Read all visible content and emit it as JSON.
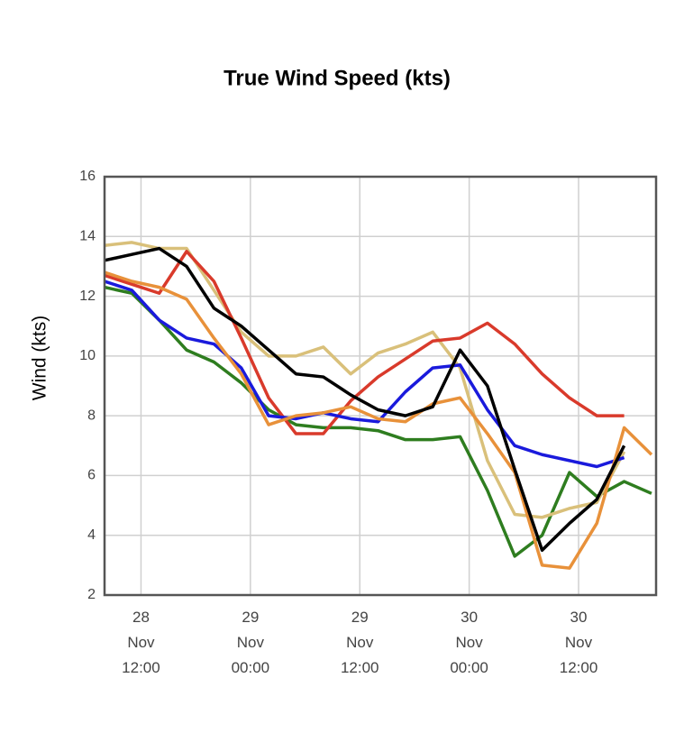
{
  "chart_data": {
    "type": "line",
    "title": "True Wind Speed (kts)",
    "y_label": "Wind (kts)",
    "x": [
      8,
      11,
      14,
      17,
      20,
      23,
      26,
      29,
      32,
      35,
      38,
      41,
      44,
      47,
      50,
      53,
      56,
      59,
      62,
      65,
      68
    ],
    "xlim": [
      8,
      68.5
    ],
    "xticks": [
      {
        "value": 12,
        "label": "28\nNov\n12:00"
      },
      {
        "value": 24,
        "label": "29\nNov\n00:00"
      },
      {
        "value": 36,
        "label": "29\nNov\n12:00"
      },
      {
        "value": 48,
        "label": "30\nNov\n00:00"
      },
      {
        "value": 60,
        "label": "30\nNov\n12:00"
      }
    ],
    "ylim": [
      2,
      16
    ],
    "yticks": [
      2,
      4,
      6,
      8,
      10,
      12,
      14,
      16
    ],
    "grid": true,
    "series": [
      {
        "color": "#2e7d1f",
        "values": [
          12.3,
          12.1,
          11.2,
          10.2,
          9.8,
          9.1,
          8.2,
          7.7,
          7.6,
          7.6,
          7.5,
          7.2,
          7.2,
          7.3,
          5.5,
          3.3,
          4.0,
          6.1,
          5.3,
          5.8,
          5.4
        ]
      },
      {
        "color": "#d9c07a",
        "values": [
          13.7,
          13.8,
          13.6,
          13.6,
          12.2,
          10.8,
          10.0,
          10.0,
          10.3,
          9.4,
          10.1,
          10.4,
          10.8,
          9.6,
          6.5,
          4.7,
          4.6,
          4.9,
          5.1,
          6.8,
          null
        ]
      },
      {
        "color": "#d93a2b",
        "values": [
          12.7,
          12.4,
          12.1,
          13.5,
          12.5,
          10.6,
          8.6,
          7.4,
          7.4,
          8.5,
          9.3,
          9.9,
          10.5,
          10.6,
          11.1,
          10.4,
          9.4,
          8.6,
          8.0,
          8.0,
          null
        ]
      },
      {
        "color": "#1a1adc",
        "values": [
          12.5,
          12.2,
          11.2,
          10.6,
          10.4,
          9.6,
          8.0,
          7.9,
          8.1,
          7.9,
          7.8,
          8.8,
          9.6,
          9.7,
          8.2,
          7.0,
          6.7,
          6.5,
          6.3,
          6.6,
          null
        ]
      },
      {
        "color": "#e8913a",
        "values": [
          12.8,
          12.5,
          12.3,
          11.9,
          10.6,
          9.4,
          7.7,
          8.0,
          8.1,
          8.3,
          7.9,
          7.8,
          8.4,
          8.6,
          7.4,
          6.1,
          3.0,
          2.9,
          4.4,
          7.6,
          6.7
        ]
      },
      {
        "color": "#000000",
        "values": [
          13.2,
          13.4,
          13.6,
          13.0,
          11.6,
          11.0,
          10.2,
          9.4,
          9.3,
          8.7,
          8.2,
          8.0,
          8.3,
          10.2,
          9.0,
          6.2,
          3.5,
          4.4,
          5.2,
          7.0,
          null
        ]
      }
    ]
  }
}
